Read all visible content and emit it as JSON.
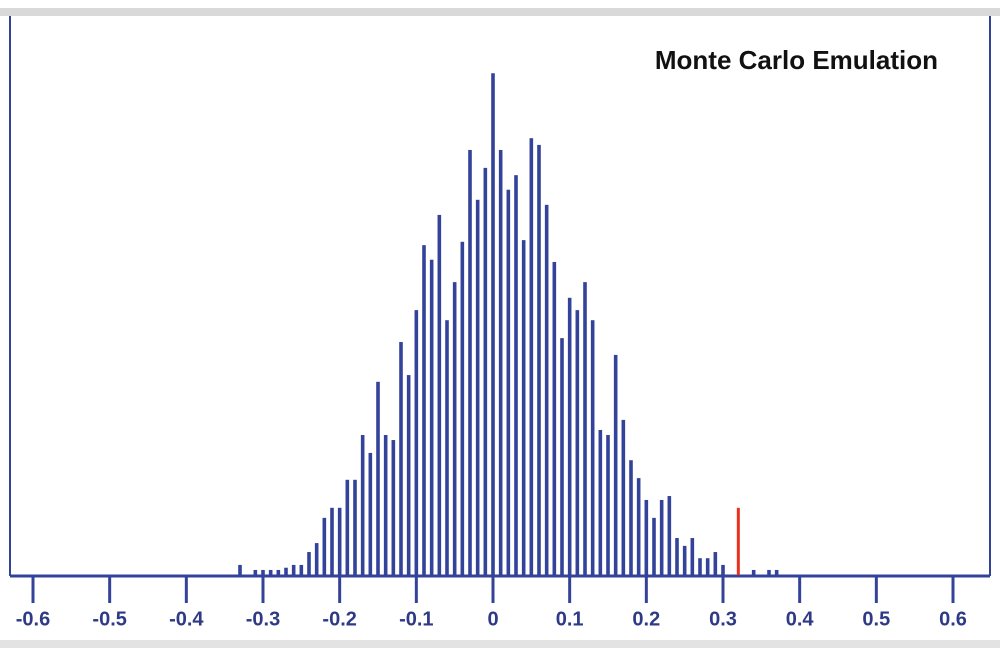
{
  "chart_data": {
    "type": "bar",
    "title": "Monte Carlo Emulation",
    "x": [
      -0.33,
      -0.31,
      -0.3,
      -0.29,
      -0.28,
      -0.27,
      -0.26,
      -0.25,
      -0.24,
      -0.23,
      -0.22,
      -0.21,
      -0.2,
      -0.19,
      -0.18,
      -0.17,
      -0.16,
      -0.15,
      -0.14,
      -0.13,
      -0.12,
      -0.11,
      -0.1,
      -0.09,
      -0.08,
      -0.07,
      -0.06,
      -0.05,
      -0.04,
      -0.03,
      -0.02,
      -0.01,
      0,
      0.01,
      0.02,
      0.03,
      0.04,
      0.05,
      0.06,
      0.07,
      0.08,
      0.09,
      0.1,
      0.11,
      0.12,
      0.13,
      0.14,
      0.15,
      0.16,
      0.17,
      0.18,
      0.19,
      0.2,
      0.21,
      0.22,
      0.23,
      0.24,
      0.25,
      0.26,
      0.27,
      0.28,
      0.29,
      0.3,
      0.34,
      0.36,
      0.37
    ],
    "values": [
      1.8,
      0.9,
      0.9,
      0.9,
      0.9,
      1.3,
      1.8,
      1.8,
      4.1,
      5.7,
      10.2,
      12,
      12,
      17,
      17,
      25,
      21.8,
      34.5,
      25,
      24.1,
      41.6,
      35.7,
      47.3,
      58.9,
      56.3,
      64.3,
      45.5,
      52.3,
      59.5,
      75.9,
      67,
      72.7,
      89.6,
      75.9,
      68.8,
      71.4,
      59.8,
      78,
      76.8,
      66.1,
      55.9,
      42.3,
      49.5,
      47.3,
      52.3,
      45.5,
      25.9,
      25,
      39.3,
      27.7,
      20.5,
      17.3,
      13.4,
      10.2,
      13.4,
      14.1,
      6.6,
      5.2,
      6.6,
      3,
      3,
      4.1,
      1.8,
      0.9,
      0.9,
      0.9
    ],
    "color": "#34439a",
    "marker": {
      "x": 0.32,
      "value": 12,
      "color": "#e8321e"
    },
    "xlim": [
      -0.6,
      0.6
    ],
    "xticks": [
      -0.6,
      -0.5,
      -0.4,
      -0.3,
      -0.2,
      -0.1,
      0,
      0.1,
      0.2,
      0.3,
      0.4,
      0.5,
      0.6
    ],
    "ylim": [
      0,
      100
    ]
  }
}
